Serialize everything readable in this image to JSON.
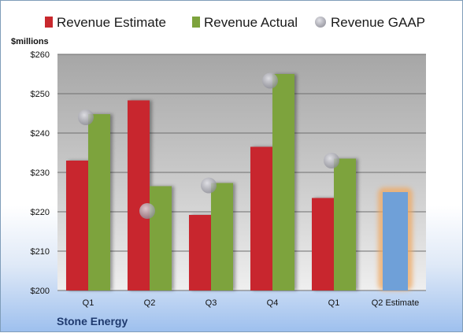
{
  "chart_data": {
    "type": "bar",
    "ylabel": "$millions",
    "ylim": [
      200,
      260
    ],
    "yticks": [
      "$200",
      "$210",
      "$220",
      "$230",
      "$240",
      "$250",
      "$260"
    ],
    "categories": [
      "Q1",
      "Q2",
      "Q3",
      "Q4",
      "Q1",
      "Q2 Estimate"
    ],
    "series": [
      {
        "name": "Revenue Estimate",
        "color": "#c8282d",
        "values": [
          233,
          248.3,
          219.2,
          236.5,
          223.5,
          null
        ]
      },
      {
        "name": "Revenue Actual",
        "color": "#7da33c",
        "values": [
          244.8,
          226.5,
          227.3,
          255,
          233.5,
          null
        ]
      },
      {
        "name": "Revenue GAAP",
        "color": "#b4b4bc",
        "marker": "circle",
        "values": [
          244,
          220.2,
          226.7,
          253.3,
          233,
          null
        ]
      },
      {
        "name": "Q2 Estimate",
        "color": "#6fa0d8",
        "highlight": "#f0a860",
        "values": [
          null,
          null,
          null,
          null,
          null,
          225
        ]
      }
    ],
    "legend_position": "top",
    "grid": true,
    "company": "Stone Energy"
  }
}
